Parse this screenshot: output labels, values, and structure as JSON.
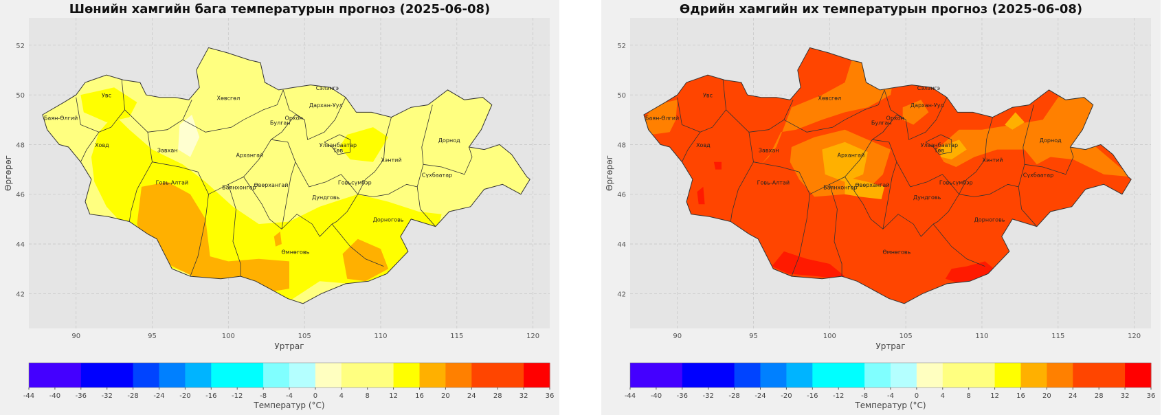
{
  "maps": [
    {
      "id": "left",
      "title": "Шөнийн хамгийн бага температурын прогноз (2025-06-08)",
      "xlabel": "Уртраг",
      "ylabel": "Өргөрөг",
      "base_color": "#ffff80",
      "zones": [
        {
          "color": "#ffff00",
          "polygon": [
            [
              92.5,
              49.2
            ],
            [
              93.5,
              48.6
            ],
            [
              95,
              47.8
            ],
            [
              97,
              47.2
            ],
            [
              98.5,
              46.5
            ],
            [
              100.3,
              45.5
            ],
            [
              102,
              44.8
            ],
            [
              104,
              44.9
            ],
            [
              106,
              45.5
            ],
            [
              108.5,
              46.0
            ],
            [
              110.5,
              45.7
            ],
            [
              112.5,
              45.3
            ],
            [
              114,
              45.2
            ],
            [
              113.5,
              44.0
            ],
            [
              112,
              42.8
            ],
            [
              110,
              42.5
            ],
            [
              108,
              42.4
            ],
            [
              106,
              42.5
            ],
            [
              104,
              41.7
            ],
            [
              102,
              42.0
            ],
            [
              100,
              42.5
            ],
            [
              98,
              42.7
            ],
            [
              95.5,
              43.2
            ],
            [
              93.5,
              44.5
            ],
            [
              92.0,
              45.5
            ],
            [
              91.2,
              46.5
            ],
            [
              91,
              47.5
            ],
            [
              91.5,
              48.5
            ]
          ]
        },
        {
          "color": "#ffff00",
          "polygon": [
            [
              90.3,
              50.0
            ],
            [
              92.5,
              50.3
            ],
            [
              94,
              49.7
            ],
            [
              93.5,
              49.1
            ],
            [
              92,
              48.9
            ],
            [
              90.5,
              49.3
            ]
          ]
        },
        {
          "color": "#ffb000",
          "polygon": [
            [
              94.3,
              46.3
            ],
            [
              96,
              46.5
            ],
            [
              97.5,
              46.0
            ],
            [
              98.5,
              45.0
            ],
            [
              98.8,
              43.5
            ],
            [
              100,
              43.3
            ],
            [
              102,
              43.4
            ],
            [
              104,
              43.3
            ],
            [
              104,
              42.2
            ],
            [
              102,
              42.0
            ],
            [
              100,
              42.5
            ],
            [
              98,
              42.6
            ],
            [
              96,
              43.2
            ],
            [
              94.6,
              43.7
            ],
            [
              94.0,
              44.8
            ]
          ]
        },
        {
          "color": "#ffb000",
          "polygon": [
            [
              107.5,
              43.6
            ],
            [
              108.5,
              44.2
            ],
            [
              110,
              43.8
            ],
            [
              110.5,
              43.0
            ],
            [
              109,
              42.5
            ],
            [
              107.8,
              42.6
            ]
          ]
        },
        {
          "color": "#ffb000",
          "polygon": [
            [
              103.0,
              44.3
            ],
            [
              103.4,
              44.5
            ],
            [
              103.5,
              44.0
            ],
            [
              103.1,
              43.9
            ]
          ]
        },
        {
          "color": "#ffff00",
          "polygon": [
            [
              107.8,
              48.4
            ],
            [
              109.5,
              48.7
            ],
            [
              110.5,
              48.3
            ],
            [
              109.5,
              47.3
            ],
            [
              108.0,
              47.4
            ],
            [
              107.3,
              47.9
            ]
          ]
        },
        {
          "color": "#ffffd0",
          "polygon": [
            [
              96.8,
              48.8
            ],
            [
              97.6,
              49.2
            ],
            [
              98.1,
              48.3
            ],
            [
              97.5,
              47.5
            ],
            [
              96.7,
              47.8
            ]
          ]
        }
      ],
      "provinces": [
        "Увс",
        "Баян-Өлгий",
        "Ховд",
        "Завхан",
        "Говь-Алтай",
        "Хөвсгөл",
        "Архангай",
        "Баянхонгор",
        "Өвөрхангай",
        "Булган",
        "Орхон",
        "Сэлэнгэ",
        "Дархан-Уул",
        "Улаанбаатар",
        "Төв",
        "Говьсүмбэр",
        "Дундговь",
        "Өмнөговь",
        "Хэнтий",
        "Сүхбаатар",
        "Дорноговь",
        "Дорнод"
      ],
      "colorbar_label": "Температур (°C)"
    },
    {
      "id": "right",
      "title": "Өдрийн хамгийн их температурын прогноз (2025-06-08)",
      "xlabel": "Уртраг",
      "ylabel": "Өргөрөг",
      "base_color": "#ff4500",
      "zones": [
        {
          "color": "#ff8000",
          "polygon": [
            [
              87.8,
              49.0
            ],
            [
              88.5,
              49.6
            ],
            [
              90,
              49.8
            ],
            [
              89.9,
              49.0
            ],
            [
              89.5,
              48.5
            ],
            [
              88.3,
              48.4
            ]
          ]
        },
        {
          "color": "#ff8000",
          "polygon": [
            [
              97.5,
              49.5
            ],
            [
              99.5,
              50.0
            ],
            [
              101,
              50.5
            ],
            [
              101.5,
              51.5
            ],
            [
              102,
              52.0
            ],
            [
              103.5,
              51.8
            ],
            [
              104.3,
              51.0
            ],
            [
              104.0,
              50.0
            ],
            [
              102.5,
              49.5
            ],
            [
              101,
              49.3
            ],
            [
              99.5,
              49.0
            ],
            [
              97.8,
              48.6
            ],
            [
              96.8,
              48.5
            ],
            [
              96.0,
              47.5
            ],
            [
              95.5,
              47.2
            ],
            [
              96.5,
              47.9
            ]
          ]
        },
        {
          "color": "#ff8000",
          "polygon": [
            [
              97.5,
              47.9
            ],
            [
              99,
              48.3
            ],
            [
              101,
              48.6
            ],
            [
              102.5,
              48.2
            ],
            [
              104,
              47.8
            ],
            [
              103.5,
              46.8
            ],
            [
              102.5,
              46.2
            ],
            [
              101,
              46.0
            ],
            [
              99,
              45.9
            ],
            [
              98.0,
              46.6
            ],
            [
              97.4,
              47.3
            ]
          ]
        },
        {
          "color": "#ffb000",
          "polygon": [
            [
              99.5,
              47.8
            ],
            [
              101,
              48.1
            ],
            [
              102.5,
              47.7
            ],
            [
              102.2,
              46.8
            ],
            [
              101,
              46.5
            ],
            [
              99.7,
              46.8
            ]
          ]
        },
        {
          "color": "#ffb000",
          "polygon": [
            [
              101,
              46.7
            ],
            [
              102.5,
              46.5
            ],
            [
              103.6,
              46.3
            ],
            [
              103.4,
              45.8
            ],
            [
              102,
              45.9
            ],
            [
              101,
              46.0
            ]
          ]
        },
        {
          "color": "#ff8000",
          "polygon": [
            [
              104.8,
              49.5
            ],
            [
              106,
              49.8
            ],
            [
              106.5,
              49.3
            ],
            [
              105.5,
              48.8
            ],
            [
              104.8,
              49.0
            ]
          ]
        },
        {
          "color": "#ff8000",
          "polygon": [
            [
              107,
              47.8
            ],
            [
              108.5,
              48.6
            ],
            [
              110,
              48.6
            ],
            [
              112,
              48.8
            ],
            [
              114,
              49.0
            ],
            [
              115,
              49.9
            ],
            [
              116.5,
              50.2
            ],
            [
              117.3,
              49.6
            ],
            [
              117.3,
              48.0
            ],
            [
              119.8,
              46.7
            ],
            [
              118,
              46.8
            ],
            [
              116,
              47.4
            ],
            [
              114.5,
              47.5
            ],
            [
              113.6,
              47.2
            ],
            [
              112.8,
              47.8
            ],
            [
              111,
              47.8
            ],
            [
              109.5,
              47.5
            ],
            [
              108.3,
              47.1
            ],
            [
              107.5,
              47.3
            ]
          ]
        },
        {
          "color": "#ffb000",
          "polygon": [
            [
              107.3,
              47.9
            ],
            [
              108.5,
              48.2
            ],
            [
              109,
              47.8
            ],
            [
              108,
              47.4
            ],
            [
              107.3,
              47.5
            ]
          ]
        },
        {
          "color": "#ffb000",
          "polygon": [
            [
              111.5,
              48.8
            ],
            [
              112.2,
              49.3
            ],
            [
              112.8,
              48.9
            ],
            [
              112,
              48.6
            ]
          ]
        },
        {
          "color": "#ff1a00",
          "polygon": [
            [
              96.2,
              43.1
            ],
            [
              97.3,
              42.8
            ],
            [
              99.2,
              42.7
            ],
            [
              100.5,
              42.6
            ],
            [
              101,
              42.7
            ],
            [
              100.0,
              43.2
            ],
            [
              98.5,
              43.4
            ],
            [
              97.0,
              43.7
            ]
          ]
        },
        {
          "color": "#ff1a00",
          "polygon": [
            [
              107.6,
              42.6
            ],
            [
              108.6,
              42.4
            ],
            [
              110.2,
              42.6
            ],
            [
              110.8,
              43.0
            ],
            [
              110.2,
              43.3
            ],
            [
              109.0,
              43.1
            ],
            [
              108.0,
              43.0
            ]
          ]
        },
        {
          "color": "#ff1a00",
          "polygon": [
            [
              91.3,
              46.1
            ],
            [
              91.7,
              46.3
            ],
            [
              91.8,
              45.6
            ],
            [
              91.4,
              45.6
            ]
          ]
        },
        {
          "color": "#ff1a00",
          "polygon": [
            [
              92.4,
              47.3
            ],
            [
              92.9,
              47.3
            ],
            [
              92.9,
              47.0
            ],
            [
              92.5,
              47.0
            ]
          ]
        }
      ],
      "provinces": [
        "Увс",
        "Баян-Өлгий",
        "Ховд",
        "Завхан",
        "Говь-Алтай",
        "Хөвсгөл",
        "Архангай",
        "Баянхонгор",
        "Өвөрхангай",
        "Булган",
        "Орхон",
        "Сэлэнгэ",
        "Дархан-Уул",
        "Улаанбаатар",
        "Төв",
        "Говьсүмбэр",
        "Дундговь",
        "Өмнөговь",
        "Хэнтий",
        "Сүхбаатар",
        "Дорноговь",
        "Дорнод"
      ],
      "colorbar_label": "Температур (°C)"
    }
  ],
  "axes": {
    "xlim": [
      86.9,
      121.1
    ],
    "ylim": [
      40.6,
      53.1
    ],
    "xticks": [
      90,
      95,
      100,
      105,
      110,
      115,
      120
    ],
    "yticks": [
      42,
      44,
      46,
      48,
      50,
      52
    ]
  },
  "colorbar": {
    "boundaries": [
      -44,
      -40,
      -36,
      -32,
      -28,
      -24,
      -20,
      -16,
      -12,
      -8,
      -4,
      0,
      4,
      8,
      12,
      16,
      20,
      24,
      28,
      32,
      36
    ],
    "ticks": [
      -44,
      -40,
      -36,
      -32,
      -28,
      -24,
      -20,
      -16,
      -12,
      -8,
      -4,
      0,
      4,
      8,
      12,
      16,
      20,
      24,
      28,
      32,
      36
    ],
    "levels": [
      {
        "min": -44,
        "max": -36,
        "color": "#4400ff"
      },
      {
        "min": -36,
        "max": -28,
        "color": "#0000ff"
      },
      {
        "min": -28,
        "max": -24,
        "color": "#0044ff"
      },
      {
        "min": -24,
        "max": -20,
        "color": "#0080ff"
      },
      {
        "min": -20,
        "max": -16,
        "color": "#00b4ff"
      },
      {
        "min": -16,
        "max": -8,
        "color": "#00ffff"
      },
      {
        "min": -8,
        "max": -4,
        "color": "#80ffff"
      },
      {
        "min": -4,
        "max": 0,
        "color": "#b4ffff"
      },
      {
        "min": 0,
        "max": 4,
        "color": "#ffffc0"
      },
      {
        "min": 4,
        "max": 12,
        "color": "#ffff80"
      },
      {
        "min": 12,
        "max": 16,
        "color": "#ffff00"
      },
      {
        "min": 16,
        "max": 20,
        "color": "#ffb000"
      },
      {
        "min": 20,
        "max": 24,
        "color": "#ff8000"
      },
      {
        "min": 24,
        "max": 32,
        "color": "#ff4500"
      },
      {
        "min": 32,
        "max": 36,
        "color": "#ff0000"
      }
    ]
  },
  "mongolia_outline": [
    [
      87.8,
      49.2
    ],
    [
      89.2,
      49.7
    ],
    [
      90.0,
      50.0
    ],
    [
      90.6,
      50.5
    ],
    [
      92.0,
      50.8
    ],
    [
      93.1,
      50.6
    ],
    [
      94.2,
      50.5
    ],
    [
      94.6,
      50.0
    ],
    [
      95.5,
      49.9
    ],
    [
      96.5,
      49.9
    ],
    [
      97.4,
      49.8
    ],
    [
      98.1,
      50.3
    ],
    [
      97.9,
      51.0
    ],
    [
      98.7,
      51.9
    ],
    [
      99.9,
      51.7
    ],
    [
      101.4,
      51.4
    ],
    [
      102.1,
      51.3
    ],
    [
      102.4,
      50.5
    ],
    [
      103.3,
      50.2
    ],
    [
      104.3,
      50.3
    ],
    [
      105.4,
      50.4
    ],
    [
      106.7,
      50.3
    ],
    [
      107.7,
      49.9
    ],
    [
      108.4,
      49.3
    ],
    [
      109.4,
      49.3
    ],
    [
      110.7,
      49.1
    ],
    [
      112.0,
      49.5
    ],
    [
      113.1,
      49.6
    ],
    [
      114.4,
      50.2
    ],
    [
      115.5,
      49.8
    ],
    [
      116.7,
      49.9
    ],
    [
      117.3,
      49.6
    ],
    [
      116.6,
      48.6
    ],
    [
      115.8,
      47.9
    ],
    [
      116.8,
      47.8
    ],
    [
      117.8,
      48.0
    ],
    [
      118.6,
      47.6
    ],
    [
      119.6,
      46.7
    ],
    [
      119.8,
      46.6
    ],
    [
      119.2,
      46.0
    ],
    [
      118.0,
      46.4
    ],
    [
      116.8,
      46.2
    ],
    [
      115.9,
      45.5
    ],
    [
      114.5,
      45.3
    ],
    [
      113.6,
      44.7
    ],
    [
      112.0,
      45.0
    ],
    [
      111.3,
      44.3
    ],
    [
      111.8,
      43.7
    ],
    [
      110.4,
      42.8
    ],
    [
      109.2,
      42.5
    ],
    [
      107.7,
      42.4
    ],
    [
      106.1,
      42.0
    ],
    [
      104.9,
      41.6
    ],
    [
      103.9,
      41.8
    ],
    [
      102.7,
      42.2
    ],
    [
      101.8,
      42.5
    ],
    [
      100.8,
      42.7
    ],
    [
      99.5,
      42.6
    ],
    [
      97.5,
      42.7
    ],
    [
      96.3,
      43.0
    ],
    [
      95.3,
      44.2
    ],
    [
      94.7,
      44.4
    ],
    [
      93.5,
      44.9
    ],
    [
      92.1,
      45.1
    ],
    [
      90.9,
      45.2
    ],
    [
      90.6,
      45.7
    ],
    [
      91.0,
      46.6
    ],
    [
      90.3,
      47.3
    ],
    [
      89.5,
      47.9
    ],
    [
      88.9,
      48.0
    ],
    [
      88.1,
      48.6
    ],
    [
      87.8,
      49.2
    ]
  ]
}
